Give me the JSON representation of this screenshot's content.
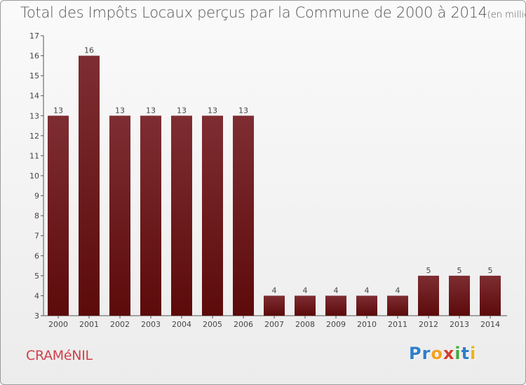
{
  "title": "Total des Impôts Locaux perçus par la Commune de 2000 à 2014",
  "unit": "(en milliers d'€)",
  "commune": "CRAMéNIL",
  "logo": {
    "letters": [
      "P",
      "r",
      "o",
      "x",
      "i",
      "t",
      "i"
    ],
    "colors": [
      "#2f7fc8",
      "#2f7fc8",
      "#f5a020",
      "#d63a2c",
      "#44aa3c",
      "#2f7fc8",
      "#e9b320"
    ]
  },
  "colors": {
    "bar_dark": "#5c0a0a",
    "bar_light": "#7e2d32",
    "axis": "#555555"
  },
  "chart_data": {
    "type": "bar",
    "title": "Total des Impôts Locaux perçus par la Commune de 2000 à 2014",
    "unit_label": "(en milliers d'€)",
    "categories": [
      "2000",
      "2001",
      "2002",
      "2003",
      "2004",
      "2005",
      "2006",
      "2007",
      "2008",
      "2009",
      "2010",
      "2011",
      "2012",
      "2013",
      "2014"
    ],
    "values": [
      13,
      16,
      13,
      13,
      13,
      13,
      13,
      4,
      4,
      4,
      4,
      4,
      5,
      5,
      5
    ],
    "ylim": [
      3,
      17
    ],
    "yticks": [
      3,
      4,
      5,
      6,
      7,
      8,
      9,
      10,
      11,
      12,
      13,
      14,
      15,
      16,
      17
    ],
    "grid": false,
    "data_labels": true
  }
}
